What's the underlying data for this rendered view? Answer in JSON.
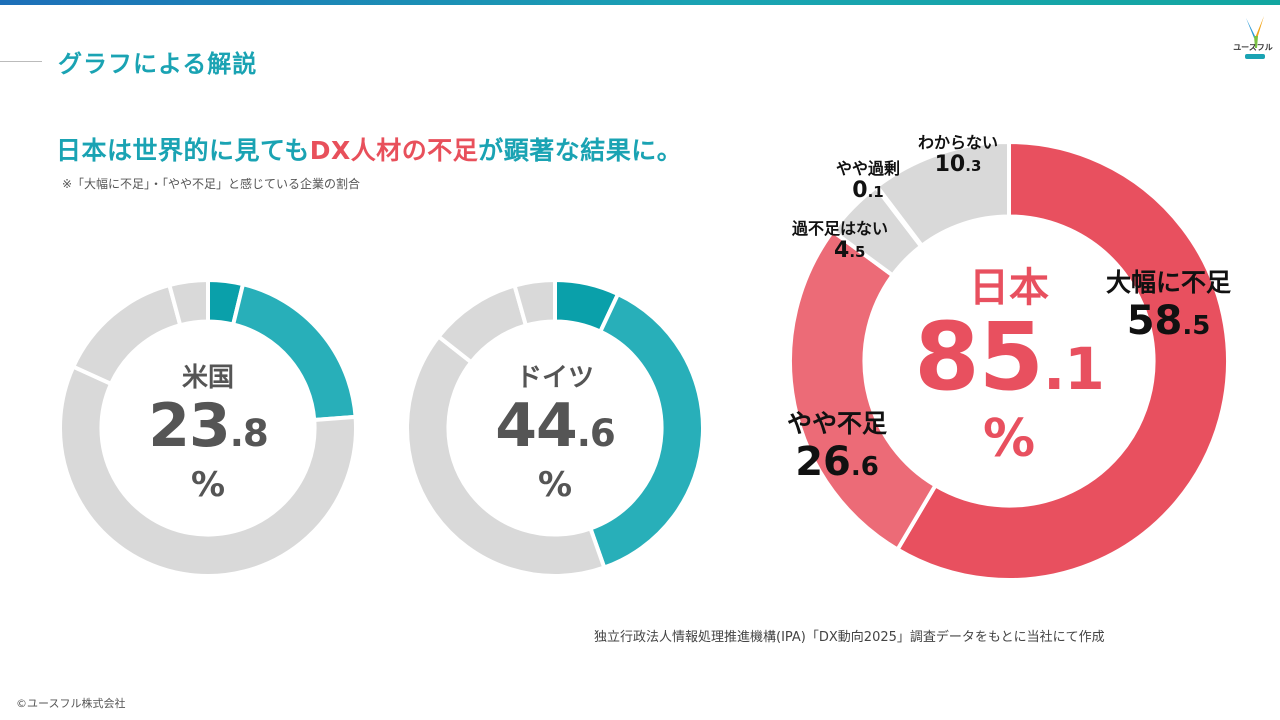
{
  "header": {
    "section_title": "グラフによる解説",
    "logo_text": "ユースフル"
  },
  "headline": {
    "part1": "日本は世界的に見ても",
    "highlight": "DX人材の不足",
    "part2": "が顕著な結果に。"
  },
  "note": "※「大幅に不足」・「やや不足」と感じている企業の割合",
  "colors": {
    "teal_dark": "#0aa0aa",
    "teal": "#28afb9",
    "gray": "#d9d9d9",
    "red": "#e8505f",
    "red_light": "#ec6b77",
    "text_gray": "#555555"
  },
  "chart_data": [
    {
      "type": "pie",
      "center": {
        "title": "米国",
        "value_int": "23",
        "value_dec": ".8",
        "unit": "%"
      },
      "series": [
        {
          "name": "大幅に不足",
          "value": 3.8,
          "color": "#0aa0aa"
        },
        {
          "name": "やや不足",
          "value": 20.0,
          "color": "#28afb9"
        },
        {
          "name": "過不足はない",
          "value": 58.0,
          "color": "#d9d9d9"
        },
        {
          "name": "やや過剰",
          "value": 14.0,
          "color": "#d9d9d9"
        },
        {
          "name": "わからない",
          "value": 4.2,
          "color": "#d9d9d9"
        }
      ]
    },
    {
      "type": "pie",
      "center": {
        "title": "ドイツ",
        "value_int": "44",
        "value_dec": ".6",
        "unit": "%"
      },
      "series": [
        {
          "name": "大幅に不足",
          "value": 7.0,
          "color": "#0aa0aa"
        },
        {
          "name": "やや不足",
          "value": 37.6,
          "color": "#28afb9"
        },
        {
          "name": "過不足はない",
          "value": 41.0,
          "color": "#d9d9d9"
        },
        {
          "name": "やや過剰",
          "value": 10.0,
          "color": "#d9d9d9"
        },
        {
          "name": "わからない",
          "value": 4.4,
          "color": "#d9d9d9"
        }
      ]
    },
    {
      "type": "pie",
      "center": {
        "title": "日本",
        "value_int": "85",
        "value_dec": ".1",
        "unit": "%"
      },
      "series": [
        {
          "name": "大幅に不足",
          "label": "大幅に不足",
          "value_int": "58",
          "value_dec": ".5",
          "value": 58.5,
          "color": "#e8505f"
        },
        {
          "name": "やや不足",
          "label": "やや不足",
          "value_int": "26",
          "value_dec": ".6",
          "value": 26.6,
          "color": "#ec6b77"
        },
        {
          "name": "過不足はない",
          "label": "過不足はない",
          "value_int": "4",
          "value_dec": ".5",
          "value": 4.5,
          "color": "#d9d9d9"
        },
        {
          "name": "やや過剰",
          "label": "やや過剰",
          "value_int": "0",
          "value_dec": ".1",
          "value": 0.1,
          "color": "#d9d9d9"
        },
        {
          "name": "わからない",
          "label": "わからない",
          "value_int": "10",
          "value_dec": ".3",
          "value": 10.3,
          "color": "#d9d9d9"
        }
      ]
    }
  ],
  "source": "独立行政法人情報処理推進機構(IPA)「DX動向2025」調査データをもとに当社にて作成",
  "copyright": "©ユースフル株式会社"
}
